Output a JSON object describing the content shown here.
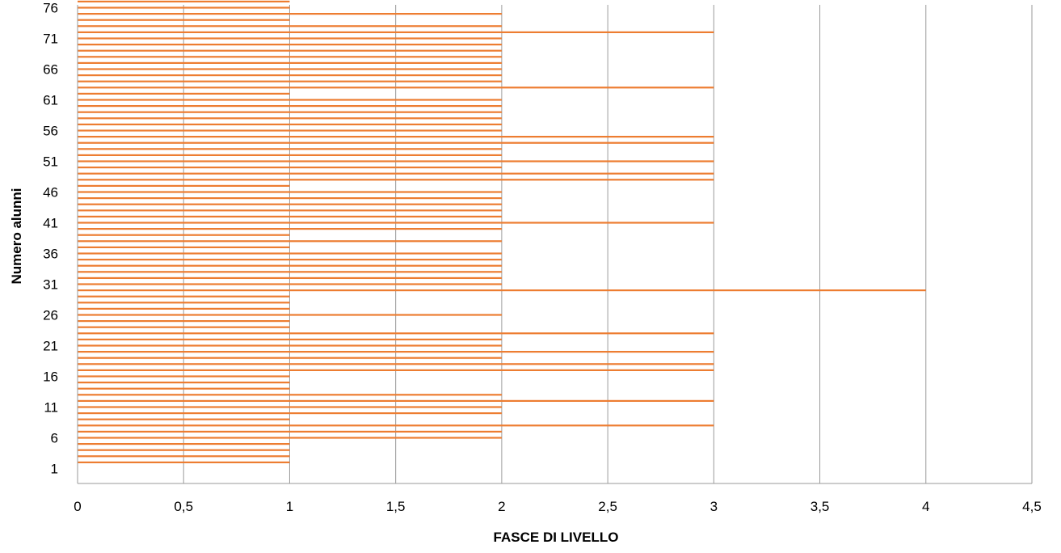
{
  "chart_data": {
    "type": "bar",
    "orientation": "horizontal",
    "title": "",
    "xlabel": "FASCE DI LIVELLO",
    "ylabel": "Numero alunni",
    "xlim": [
      0,
      4.5
    ],
    "x_ticks": [
      "0",
      "0,5",
      "1",
      "1,5",
      "2",
      "2,5",
      "3",
      "3,5",
      "4",
      "4,5"
    ],
    "y_ticks": [
      "1",
      "6",
      "11",
      "16",
      "21",
      "26",
      "31",
      "36",
      "41",
      "46",
      "51",
      "56",
      "61",
      "66",
      "71",
      "76"
    ],
    "grid": "vertical",
    "legend": "none",
    "bar_color": "#ED7D31",
    "categories": [
      1,
      2,
      3,
      4,
      5,
      6,
      7,
      8,
      9,
      10,
      11,
      12,
      13,
      14,
      15,
      16,
      17,
      18,
      19,
      20,
      21,
      22,
      23,
      24,
      25,
      26,
      27,
      28,
      29,
      30,
      31,
      32,
      33,
      34,
      35,
      36,
      37,
      38,
      39,
      40,
      41,
      42,
      43,
      44,
      45,
      46,
      47,
      48,
      49,
      50,
      51,
      52,
      53,
      54,
      55,
      56,
      57,
      58,
      59,
      60,
      61,
      62,
      63,
      64,
      65,
      66,
      67,
      68,
      69,
      70,
      71,
      72,
      73,
      74,
      75,
      76,
      77
    ],
    "values": [
      0,
      1,
      1,
      1,
      1,
      2,
      2,
      3,
      1,
      2,
      2,
      3,
      2,
      1,
      1,
      1,
      3,
      3,
      2,
      3,
      2,
      2,
      3,
      1,
      1,
      2,
      1,
      1,
      1,
      4,
      2,
      2,
      2,
      2,
      2,
      2,
      1,
      2,
      1,
      2,
      3,
      2,
      2,
      2,
      2,
      2,
      1,
      3,
      3,
      2,
      3,
      2,
      2,
      3,
      3,
      2,
      2,
      2,
      2,
      2,
      2,
      1,
      3,
      2,
      2,
      2,
      2,
      2,
      2,
      2,
      2,
      3,
      2,
      1,
      2,
      1,
      1
    ]
  }
}
